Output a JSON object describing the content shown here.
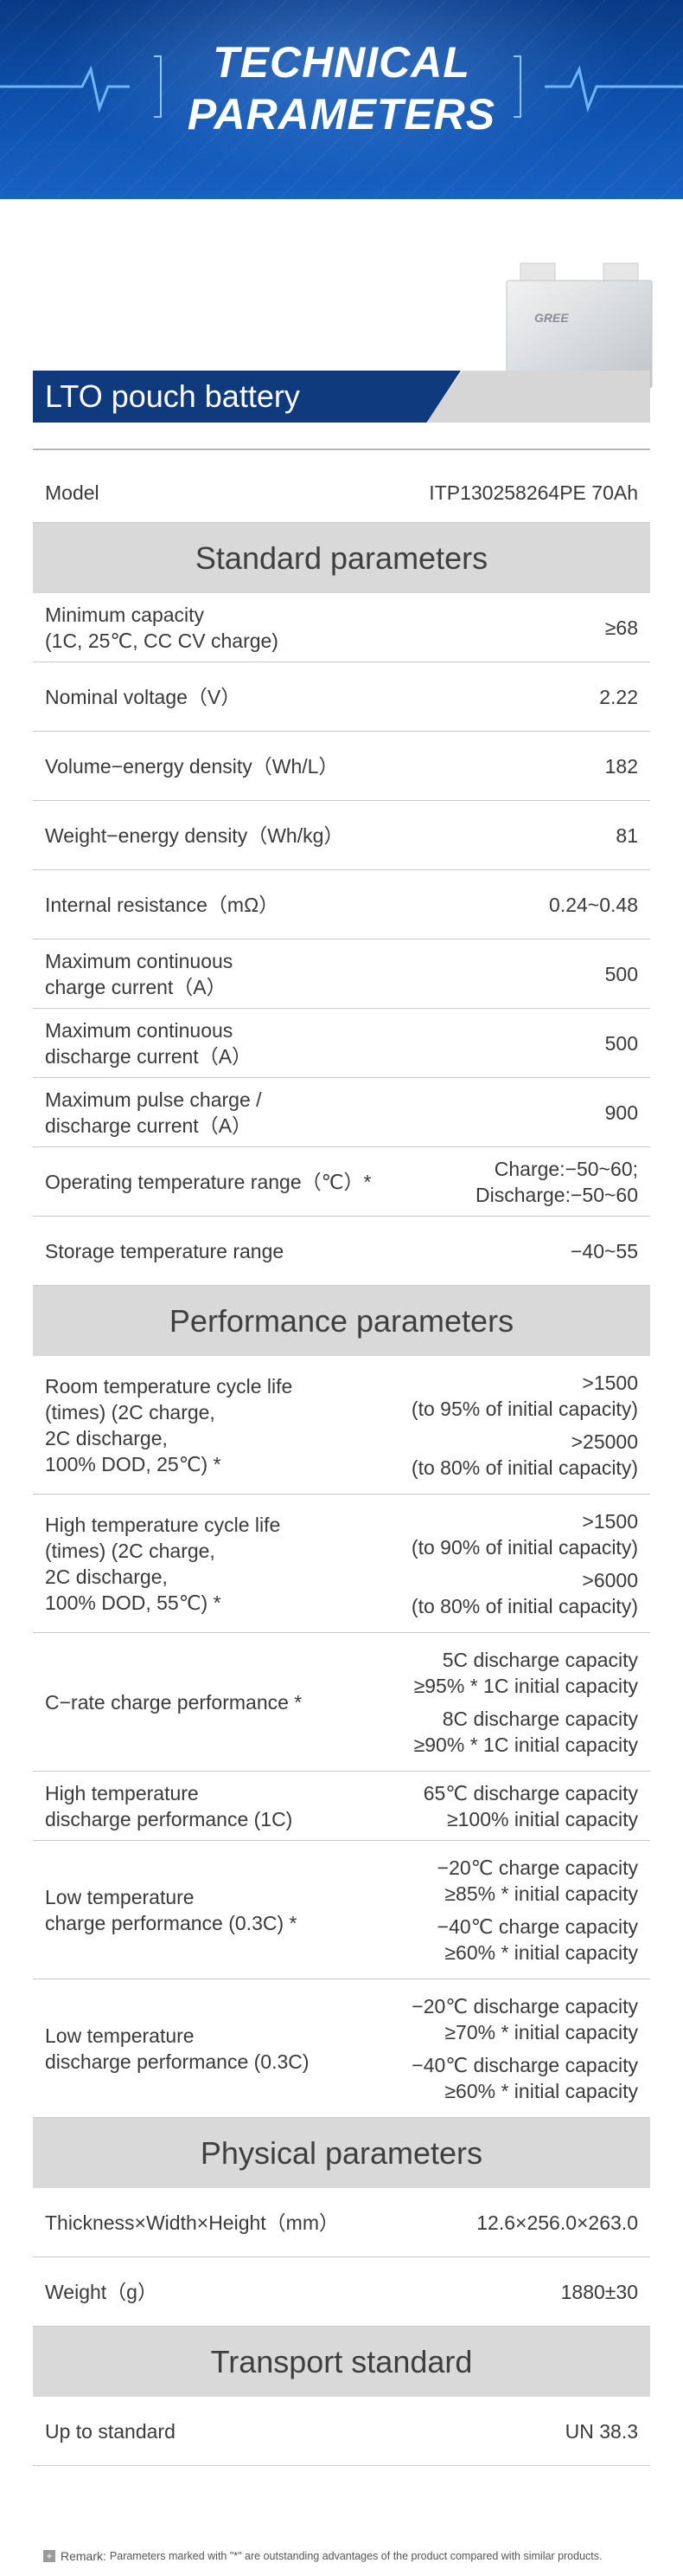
{
  "banner": {
    "title_line1": "TECHNICAL",
    "title_line2": "PARAMETERS",
    "accent": "#0d4ea8"
  },
  "product": {
    "name": "LTO pouch battery",
    "logo_text": "GREE",
    "bar_color": "#0f3a7e"
  },
  "model": {
    "label": "Model",
    "value": "ITP130258264PE 70Ah"
  },
  "sections": {
    "standard": "Standard parameters",
    "performance": "Performance parameters",
    "physical": "Physical parameters",
    "transport": "Transport standard"
  },
  "standard_rows": [
    {
      "label_lines": [
        "Minimum capacity",
        "(1C, 25℃, CC CV charge)"
      ],
      "value_lines": [
        "≥68"
      ]
    },
    {
      "label_lines": [
        "Nominal voltage（V）"
      ],
      "value_lines": [
        "2.22"
      ]
    },
    {
      "label_lines": [
        "Volume−energy density（Wh/L）"
      ],
      "value_lines": [
        "182"
      ]
    },
    {
      "label_lines": [
        "Weight−energy density（Wh/kg）"
      ],
      "value_lines": [
        "81"
      ]
    },
    {
      "label_lines": [
        "Internal resistance（mΩ）"
      ],
      "value_lines": [
        "0.24~0.48"
      ]
    },
    {
      "label_lines": [
        "Maximum continuous",
        "charge current（A）"
      ],
      "value_lines": [
        "500"
      ]
    },
    {
      "label_lines": [
        "Maximum continuous",
        "discharge current（A）"
      ],
      "value_lines": [
        "500"
      ]
    },
    {
      "label_lines": [
        "Maximum pulse charge /",
        "discharge current（A）"
      ],
      "value_lines": [
        "900"
      ]
    },
    {
      "label_lines": [
        "Operating temperature range（℃）*"
      ],
      "value_lines": [
        "Charge:−50~60;",
        "Discharge:−50~60"
      ]
    },
    {
      "label_lines": [
        "Storage temperature range"
      ],
      "value_lines": [
        "−40~55"
      ]
    }
  ],
  "performance_rows": [
    {
      "label_lines": [
        "Room temperature cycle life",
        "(times) (2C charge,",
        "2C discharge,",
        "100% DOD, 25℃) *"
      ],
      "value_groups": [
        [
          ">1500",
          "(to 95% of initial capacity)"
        ],
        [
          ">25000",
          "(to 80% of initial capacity)"
        ]
      ]
    },
    {
      "label_lines": [
        "High temperature cycle life",
        "(times) (2C charge,",
        "2C discharge,",
        "100% DOD, 55℃) *"
      ],
      "value_groups": [
        [
          ">1500",
          "(to 90% of initial capacity)"
        ],
        [
          ">6000",
          "(to 80% of initial capacity)"
        ]
      ]
    },
    {
      "label_lines": [
        "C−rate charge performance *"
      ],
      "value_groups": [
        [
          "5C discharge capacity",
          "≥95% * 1C initial capacity"
        ],
        [
          "8C discharge capacity",
          "≥90% * 1C initial capacity"
        ]
      ]
    },
    {
      "label_lines": [
        "High temperature",
        "discharge performance (1C)"
      ],
      "value_groups": [
        [
          "65℃ discharge capacity",
          "≥100% initial capacity"
        ]
      ]
    },
    {
      "label_lines": [
        "Low temperature",
        "charge performance (0.3C) *"
      ],
      "value_groups": [
        [
          "−20℃ charge capacity",
          "≥85% * initial capacity"
        ],
        [
          "−40℃ charge capacity",
          "≥60% * initial capacity"
        ]
      ]
    },
    {
      "label_lines": [
        "Low temperature",
        "discharge performance (0.3C)"
      ],
      "value_groups": [
        [
          "−20℃ discharge capacity",
          "≥70% * initial capacity"
        ],
        [
          "−40℃ discharge capacity",
          "≥60% * initial capacity"
        ]
      ]
    }
  ],
  "physical_rows": [
    {
      "label_lines": [
        "Thickness×Width×Height（mm）"
      ],
      "value_lines": [
        "12.6×256.0×263.0"
      ]
    },
    {
      "label_lines": [
        "Weight（g）"
      ],
      "value_lines": [
        "1880±30"
      ]
    }
  ],
  "transport_rows": [
    {
      "label_lines": [
        "Up to standard"
      ],
      "value_lines": [
        "UN 38.3"
      ]
    }
  ],
  "remark": {
    "icon": "plus-icon",
    "label": "Remark:",
    "text": "Parameters marked with \"*\" are outstanding advantages of the product compared with similar products."
  }
}
